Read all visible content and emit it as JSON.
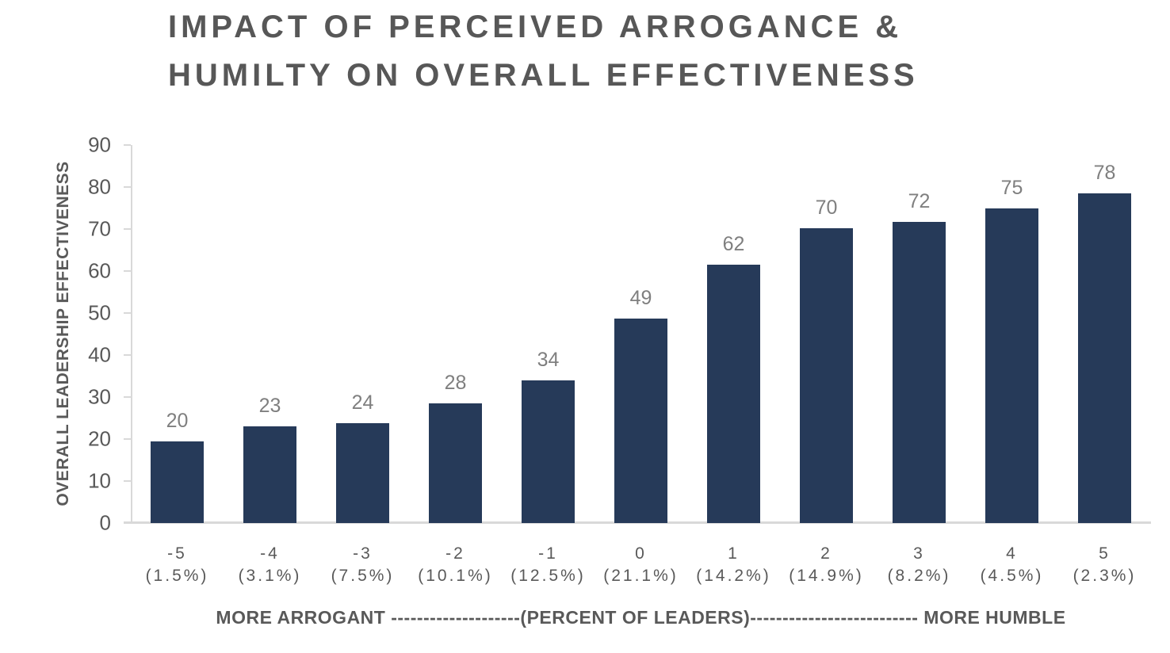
{
  "title": {
    "line1": "IMPACT OF PERCEIVED ARROGANCE &",
    "line2": "HUMILTY ON OVERALL EFFECTIVENESS"
  },
  "chart_data": {
    "type": "bar",
    "title": "IMPACT OF PERCEIVED ARROGANCE & HUMILTY ON OVERALL EFFECTIVENESS",
    "categories": [
      "-5",
      "-4",
      "-3",
      "-2",
      "-1",
      "0",
      "1",
      "2",
      "3",
      "4",
      "5"
    ],
    "category_percents": [
      "(1.5%)",
      "(3.1%)",
      "(7.5%)",
      "(10.1%)",
      "(12.5%)",
      "(21.1%)",
      "(14.2%)",
      "(14.9%)",
      "(8.2%)",
      "(4.5%)",
      "(2.3%)"
    ],
    "values": [
      20,
      23,
      24,
      28,
      34,
      49,
      62,
      70,
      72,
      75,
      78
    ],
    "values_precise": [
      19.5,
      23.1,
      23.7,
      28.4,
      34.0,
      48.6,
      61.5,
      70.1,
      71.7,
      74.9,
      78.4
    ],
    "ylabel": "OVERALL LEADERSHIP EFFECTIVENESS",
    "xlabel": "MORE ARROGANT --------------------(PERCENT OF LEADERS)-------------------------- MORE HUMBLE",
    "ylim": [
      0,
      90
    ],
    "ytick_step": 10,
    "yticks": [
      0,
      10,
      20,
      30,
      40,
      50,
      60,
      70,
      80,
      90
    ],
    "grid": false,
    "legend": false,
    "bar_color": "#263a59",
    "data_label_color": "#7f7f7f",
    "axis_line_color": "#d9d9d9",
    "text_color": "#595959",
    "title_color": "#575757"
  }
}
